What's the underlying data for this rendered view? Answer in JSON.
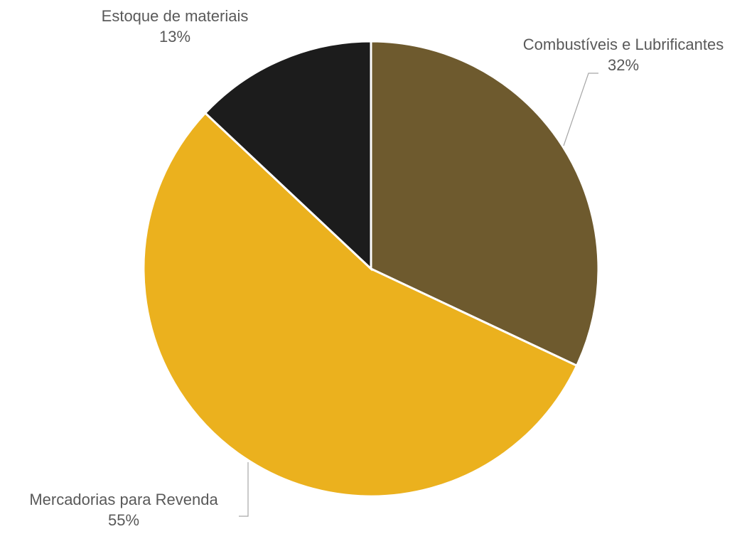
{
  "chart_data": {
    "type": "pie",
    "start_angle_deg": 0,
    "direction": "clockwise",
    "legend": "none",
    "slices": [
      {
        "label": "Combustíveis e Lubrificantes",
        "value": 32,
        "value_label": "32%",
        "color": "#6e5a2e"
      },
      {
        "label": "Mercadorias para Revenda",
        "value": 55,
        "value_label": "55%",
        "color": "#ebb11e"
      },
      {
        "label": "Estoque de materiais",
        "value": 13,
        "value_label": "13%",
        "color": "#1c1c1c"
      }
    ]
  }
}
